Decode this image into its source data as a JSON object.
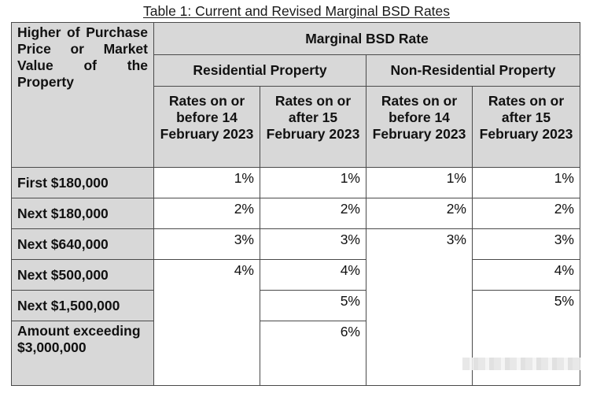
{
  "caption": "Table 1: Current and Revised Marginal BSD Rates",
  "header": {
    "corner": "Higher of Purchase Price or Market Value of the Property",
    "group": "Marginal BSD Rate",
    "residential": "Residential Property",
    "non_residential": "Non-Residential Property",
    "col_before": "Rates on or before 14 February 2023",
    "col_after": "Rates on or after 15 February 2023"
  },
  "rows": [
    {
      "label": "First $180,000",
      "res_before": "1%",
      "res_after": "1%",
      "nonres_before": "1%",
      "nonres_after": "1%"
    },
    {
      "label": "Next $180,000",
      "res_before": "2%",
      "res_after": "2%",
      "nonres_before": "2%",
      "nonres_after": "2%"
    },
    {
      "label": "Next $640,000",
      "res_before": "3%",
      "res_after": "3%",
      "nonres_before": "3%",
      "nonres_after": "3%"
    },
    {
      "label": "Next $500,000",
      "res_before": "4%",
      "res_after": "4%",
      "nonres_after": "4%"
    },
    {
      "label": "Next $1,500,000",
      "res_after": "5%",
      "nonres_after": "5%"
    },
    {
      "label": "Amount exceeding $3,000,000",
      "res_after": "6%"
    }
  ]
}
